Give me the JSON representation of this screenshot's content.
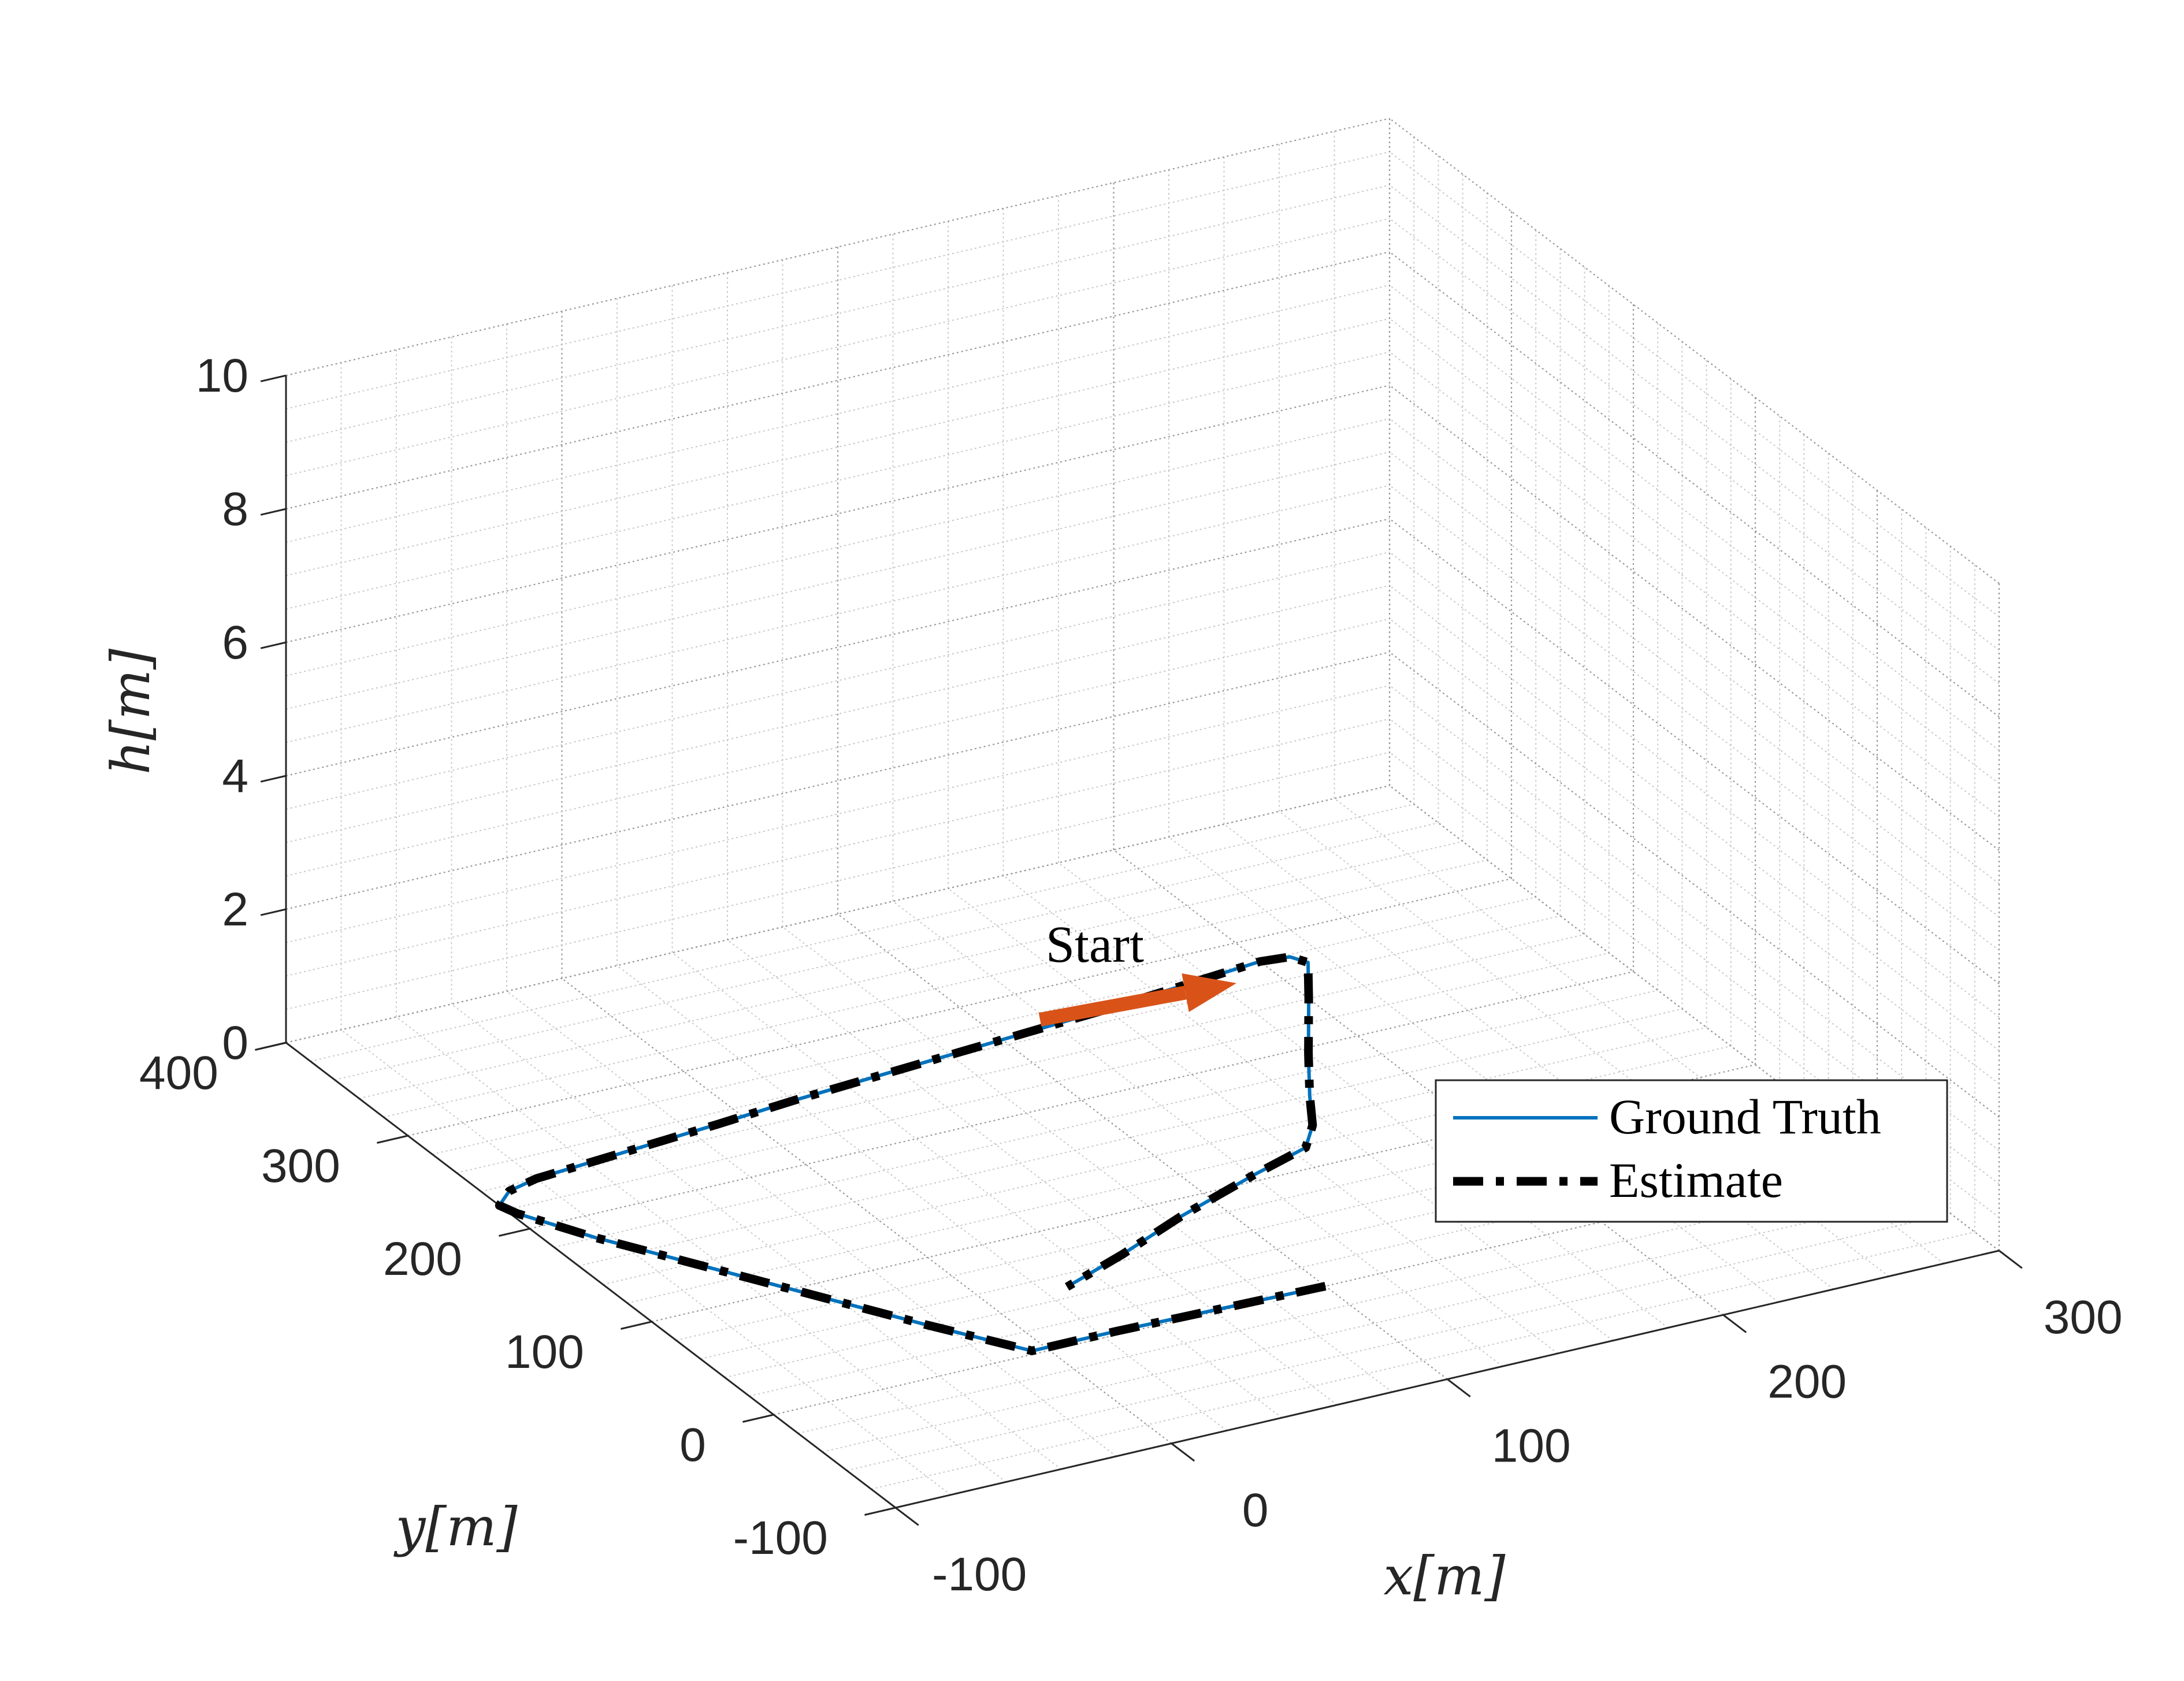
{
  "chart_data": {
    "type": "line3d",
    "title": "",
    "xlabel": "x[m]",
    "ylabel": "y[m]",
    "zlabel": "h[m]",
    "xlim": [
      -100,
      300
    ],
    "ylim": [
      -100,
      400
    ],
    "zlim": [
      0,
      10
    ],
    "x_ticks": [
      "-100",
      "0",
      "100",
      "200",
      "300"
    ],
    "y_ticks": [
      "-100",
      "0",
      "100",
      "200",
      "300",
      "400"
    ],
    "z_ticks": [
      "0",
      "2",
      "4",
      "6",
      "8",
      "10"
    ],
    "grid": true,
    "box": false,
    "legend_position": "inside-bottom-right",
    "annotation": {
      "text": "Start",
      "color": "#D95319"
    },
    "series": [
      {
        "name": "Ground Truth",
        "style": "solid",
        "color": "#0072BD",
        "points": [
          [
            100,
            0,
            0
          ],
          [
            75,
            1,
            0
          ],
          [
            50,
            2,
            0
          ],
          [
            25,
            3,
            0
          ],
          [
            0,
            3,
            0
          ],
          [
            -5,
            3,
            0
          ],
          [
            -25,
            45,
            0
          ],
          [
            -45,
            90,
            0
          ],
          [
            -65,
            135,
            0
          ],
          [
            -85,
            180,
            0
          ],
          [
            -98,
            215,
            0
          ],
          [
            -100,
            225,
            0
          ],
          [
            -92,
            235,
            0
          ],
          [
            -80,
            240,
            0
          ],
          [
            -45,
            245,
            0
          ],
          [
            -10,
            250,
            0
          ],
          [
            20,
            255,
            0
          ],
          [
            60,
            260,
            0
          ],
          [
            100,
            265,
            0
          ],
          [
            140,
            270,
            0
          ],
          [
            170,
            275,
            0
          ],
          [
            200,
            280,
            0
          ],
          [
            210,
            278,
            0
          ],
          [
            213,
            270,
            0
          ],
          [
            200,
            240,
            0
          ],
          [
            180,
            195,
            0
          ],
          [
            165,
            160,
            0
          ],
          [
            155,
            135,
            0
          ],
          [
            145,
            118,
            0
          ],
          [
            120,
            105,
            0
          ],
          [
            85,
            85,
            0
          ],
          [
            55,
            65,
            0
          ],
          [
            28,
            49,
            0
          ]
        ]
      },
      {
        "name": "Estimate",
        "style": "dashdot",
        "color": "#000000",
        "points": [
          [
            100,
            0,
            0
          ],
          [
            75,
            1,
            0
          ],
          [
            50,
            2,
            0
          ],
          [
            25,
            3,
            0
          ],
          [
            0,
            3,
            0
          ],
          [
            -5,
            3,
            0
          ],
          [
            -25,
            45,
            0
          ],
          [
            -45,
            90,
            0
          ],
          [
            -65,
            135,
            0
          ],
          [
            -85,
            180,
            0
          ],
          [
            -98,
            215,
            0
          ],
          [
            -100,
            225,
            0
          ],
          [
            -92,
            235,
            0
          ],
          [
            -80,
            240,
            0
          ],
          [
            -45,
            245,
            0
          ],
          [
            -10,
            250,
            0
          ],
          [
            20,
            255,
            0
          ],
          [
            60,
            260,
            0
          ],
          [
            100,
            265,
            0
          ],
          [
            140,
            270,
            0
          ],
          [
            170,
            275,
            0
          ],
          [
            200,
            280,
            0
          ],
          [
            210,
            278,
            0
          ],
          [
            213,
            270,
            0
          ],
          [
            200,
            240,
            0
          ],
          [
            180,
            195,
            0
          ],
          [
            165,
            160,
            0
          ],
          [
            155,
            135,
            0
          ],
          [
            145,
            118,
            0
          ],
          [
            120,
            105,
            0
          ],
          [
            85,
            85,
            0
          ],
          [
            55,
            65,
            0
          ],
          [
            28,
            49,
            0
          ]
        ]
      }
    ]
  }
}
